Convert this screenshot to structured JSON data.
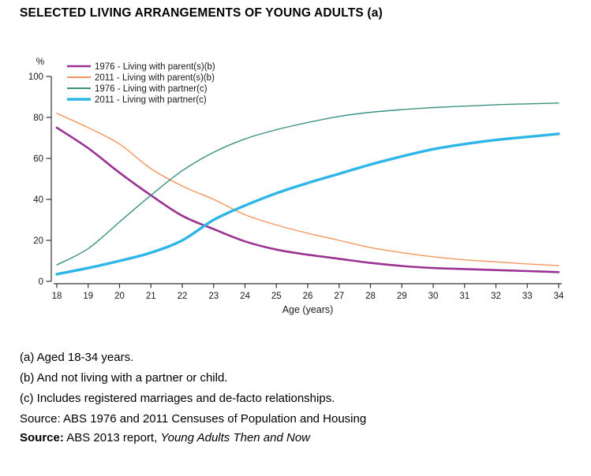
{
  "title": "SELECTED LIVING ARRANGEMENTS OF YOUNG ADULTS (a)",
  "chart_data": {
    "type": "line",
    "x": [
      18,
      19,
      20,
      21,
      22,
      23,
      24,
      25,
      26,
      27,
      28,
      29,
      30,
      31,
      32,
      33,
      34
    ],
    "xlabel": "Age (years)",
    "ylabel": "%",
    "ylim": [
      0,
      100
    ],
    "y_ticks": [
      0,
      20,
      40,
      60,
      80,
      100
    ],
    "grid": false,
    "legend_position": "top-left-inside",
    "series": [
      {
        "name": "1976 - Living with parent(s)(b)",
        "color": "#9B3192",
        "width": 2.6,
        "values": [
          75,
          65,
          53,
          42,
          32,
          25.5,
          19.5,
          15.5,
          13,
          11,
          9,
          7.5,
          6.5,
          6,
          5.5,
          5,
          4.5
        ]
      },
      {
        "name": "2011 - Living with parent(s)(b)",
        "color": "#F4965F",
        "width": 1.4,
        "values": [
          82,
          75,
          67,
          55,
          46.5,
          40,
          32.5,
          27.5,
          23.5,
          20,
          16.5,
          14,
          12,
          10.5,
          9.5,
          8.5,
          7.7
        ]
      },
      {
        "name": "1976 - Living with partner(c)",
        "color": "#3A9182",
        "width": 1.4,
        "values": [
          8,
          16,
          29,
          42,
          54,
          63,
          69.5,
          74,
          77.5,
          80.5,
          82.5,
          83.8,
          84.8,
          85.5,
          86.2,
          86.6,
          87
        ]
      },
      {
        "name": "2011 - Living with partner(c)",
        "color": "#2EB6E8",
        "width": 3.4,
        "values": [
          3.5,
          6.5,
          10,
          14,
          20,
          30,
          37,
          43,
          48,
          52.5,
          57,
          61,
          64.5,
          67,
          69,
          70.5,
          72
        ]
      }
    ]
  },
  "footnotes": [
    "(a) Aged 18-34 years.",
    "(b) And not living with a partner or child.",
    "(c) Includes registered marriages and de-facto relationships.",
    "Source: ABS 1976 and 2011 Censuses of Population and Housing"
  ],
  "source_line": {
    "label": "Source:",
    "text": " ABS 2013 report, ",
    "title_italic": "Young Adults Then and Now"
  }
}
